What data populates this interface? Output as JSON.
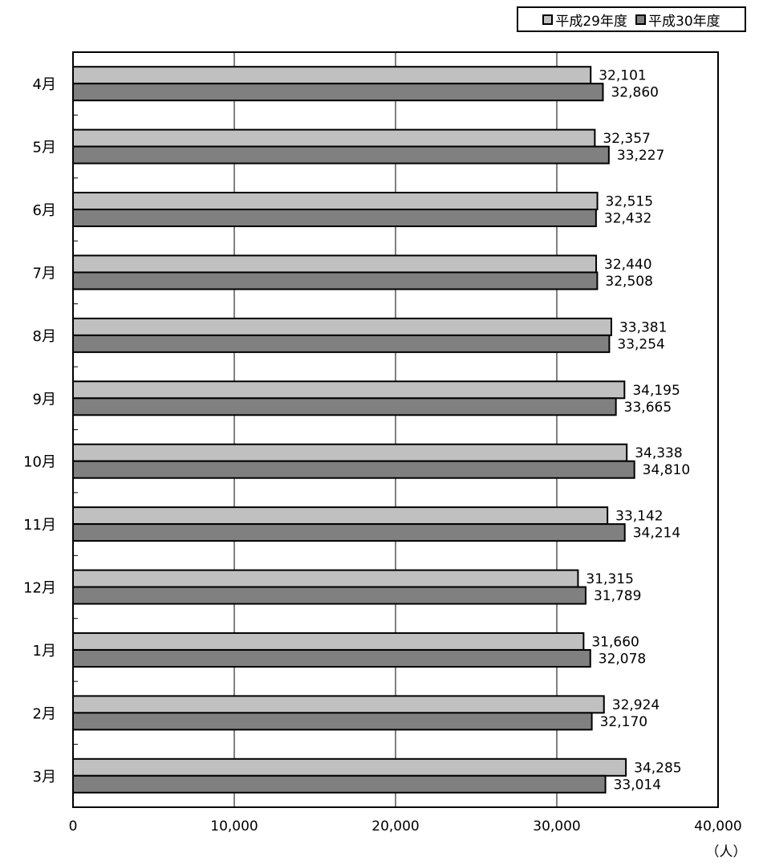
{
  "chart_data": {
    "type": "bar",
    "orientation": "horizontal",
    "categories": [
      "4月",
      "5月",
      "6月",
      "7月",
      "8月",
      "9月",
      "10月",
      "11月",
      "12月",
      "1月",
      "2月",
      "3月"
    ],
    "series": [
      {
        "name": "平成29年度",
        "color": "#c0c0c0",
        "values": [
          32101,
          32357,
          32515,
          32440,
          33381,
          34195,
          34338,
          33142,
          31315,
          31660,
          32924,
          34285
        ],
        "labels": [
          "32,101",
          "32,357",
          "32,515",
          "32,440",
          "33,381",
          "34,195",
          "34,338",
          "33,142",
          "31,315",
          "31,660",
          "32,924",
          "34,285"
        ]
      },
      {
        "name": "平成30年度",
        "color": "#808080",
        "values": [
          32860,
          33227,
          32432,
          32508,
          33254,
          33665,
          34810,
          34214,
          31789,
          32078,
          32170,
          33014
        ],
        "labels": [
          "32,860",
          "33,227",
          "32,432",
          "32,508",
          "33,254",
          "33,665",
          "34,810",
          "34,214",
          "31,789",
          "32,078",
          "32,170",
          "33,014"
        ]
      }
    ],
    "xlim": [
      0,
      40000
    ],
    "xticks": [
      0,
      10000,
      20000,
      30000,
      40000
    ],
    "xtick_labels": [
      "0",
      "10,000",
      "20,000",
      "30,000",
      "40,000"
    ],
    "unit": "（人）",
    "grid": "vertical",
    "legend_position": "top-right"
  }
}
